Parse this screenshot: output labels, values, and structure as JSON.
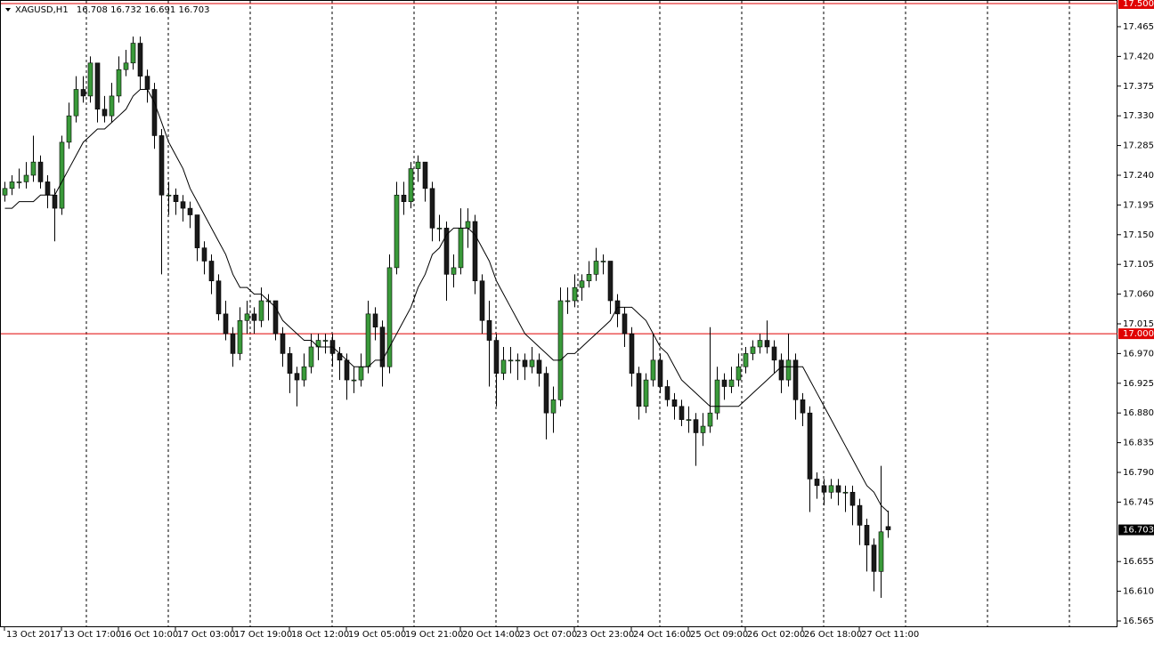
{
  "chart_data": {
    "type": "candlestick",
    "symbol": "XAGUSD,H1",
    "up_color": "#3a9a3a",
    "down_color": "#1a1a1a",
    "ma_color": "#000000",
    "ylim": [
      16.565,
      17.5
    ],
    "yticks": [
      17.465,
      {
        "value": 17.42,
        "label": "17.420"
      },
      17.375,
      {
        "value": 17.33,
        "label": "17.330"
      },
      17.285,
      {
        "value": 17.24,
        "label": "17.240"
      },
      17.195,
      {
        "value": 17.15,
        "label": "17.150"
      },
      17.105,
      {
        "value": 17.06,
        "label": "17.060"
      },
      17.015,
      {
        "value": 16.97,
        "label": "16.970"
      },
      16.925,
      {
        "value": 16.88,
        "label": "16.880"
      },
      16.835,
      {
        "value": 16.79,
        "label": "16.790"
      },
      16.745,
      16.655,
      {
        "value": 16.61,
        "label": "16.610"
      },
      16.565
    ],
    "hlines": [
      {
        "value": 17.5,
        "label": "17.500",
        "color": "#e00000"
      },
      {
        "value": 17.0,
        "label": "17.000",
        "color": "#e00000"
      }
    ],
    "categories": [
      "13 Oct 2017",
      null,
      null,
      null,
      null,
      null,
      null,
      null,
      "13 Oct 17:00",
      null,
      null,
      null,
      null,
      null,
      null,
      null,
      "16 Oct 10:00",
      null,
      null,
      null,
      null,
      null,
      null,
      null,
      "17 Oct 03:00",
      null,
      null,
      null,
      null,
      null,
      null,
      null,
      "17 Oct 19:00",
      null,
      null,
      null,
      null,
      null,
      null,
      null,
      "18 Oct 12:00",
      null,
      null,
      null,
      null,
      null,
      null,
      null,
      "19 Oct 05:00",
      null,
      null,
      null,
      null,
      null,
      null,
      null,
      "19 Oct 21:00",
      null,
      null,
      null,
      null,
      null,
      null,
      null,
      "20 Oct 14:00",
      null,
      null,
      null,
      null,
      null,
      null,
      null,
      "23 Oct 07:00",
      null,
      null,
      null,
      null,
      null,
      null,
      null,
      "23 Oct 23:00",
      null,
      null,
      null,
      null,
      null,
      null,
      null,
      "24 Oct 16:00",
      null,
      null,
      null,
      null,
      null,
      null,
      null,
      "25 Oct 09:00",
      null,
      null,
      null,
      null,
      null,
      null,
      null,
      "26 Oct 02:00",
      null,
      null,
      null,
      null,
      null,
      null,
      null,
      "26 Oct 18:00",
      null,
      null,
      null,
      null,
      null,
      null,
      null,
      "27 Oct 11:00",
      null,
      null,
      null,
      null
    ],
    "candles": [
      [
        17.21,
        17.23,
        17.2,
        17.22
      ],
      [
        17.22,
        17.24,
        17.21,
        17.23
      ],
      [
        17.23,
        17.25,
        17.22,
        17.23
      ],
      [
        17.23,
        17.26,
        17.22,
        17.24
      ],
      [
        17.24,
        17.3,
        17.23,
        17.26
      ],
      [
        17.26,
        17.27,
        17.22,
        17.23
      ],
      [
        17.23,
        17.24,
        17.19,
        17.21
      ],
      [
        17.21,
        17.22,
        17.14,
        17.19
      ],
      [
        17.19,
        17.3,
        17.18,
        17.29
      ],
      [
        17.29,
        17.35,
        17.28,
        17.33
      ],
      [
        17.33,
        17.39,
        17.32,
        17.37
      ],
      [
        17.37,
        17.39,
        17.35,
        17.36
      ],
      [
        17.36,
        17.42,
        17.35,
        17.41
      ],
      [
        17.41,
        17.41,
        17.32,
        17.34
      ],
      [
        17.34,
        17.36,
        17.32,
        17.33
      ],
      [
        17.33,
        17.38,
        17.32,
        17.36
      ],
      [
        17.36,
        17.42,
        17.35,
        17.4
      ],
      [
        17.4,
        17.43,
        17.39,
        17.41
      ],
      [
        17.41,
        17.45,
        17.4,
        17.44
      ],
      [
        17.44,
        17.45,
        17.37,
        17.39
      ],
      [
        17.39,
        17.4,
        17.35,
        17.37
      ],
      [
        17.37,
        17.38,
        17.28,
        17.3
      ],
      [
        17.3,
        17.31,
        17.09,
        17.21
      ],
      [
        17.21,
        17.23,
        17.18,
        17.21
      ],
      [
        17.21,
        17.22,
        17.18,
        17.2
      ],
      [
        17.2,
        17.21,
        17.17,
        17.19
      ],
      [
        17.19,
        17.2,
        17.16,
        17.18
      ],
      [
        17.18,
        17.18,
        17.11,
        17.13
      ],
      [
        17.13,
        17.14,
        17.09,
        17.11
      ],
      [
        17.11,
        17.12,
        17.06,
        17.08
      ],
      [
        17.08,
        17.09,
        17.02,
        17.03
      ],
      [
        17.03,
        17.05,
        16.99,
        17.0
      ],
      [
        17.0,
        17.01,
        16.95,
        16.97
      ],
      [
        16.97,
        17.04,
        16.96,
        17.02
      ],
      [
        17.02,
        17.05,
        17.0,
        17.03
      ],
      [
        17.03,
        17.04,
        17.0,
        17.02
      ],
      [
        17.02,
        17.07,
        17.01,
        17.05
      ],
      [
        17.05,
        17.06,
        17.02,
        17.05
      ],
      [
        17.05,
        17.05,
        16.99,
        17.0
      ],
      [
        17.0,
        17.01,
        16.95,
        16.97
      ],
      [
        16.97,
        16.98,
        16.91,
        16.94
      ],
      [
        16.94,
        16.95,
        16.89,
        16.93
      ],
      [
        16.93,
        16.97,
        16.92,
        16.95
      ],
      [
        16.95,
        17.0,
        16.94,
        16.98
      ],
      [
        16.98,
        17.0,
        16.96,
        16.99
      ],
      [
        16.99,
        17.0,
        16.97,
        16.99
      ],
      [
        16.99,
        17.0,
        16.95,
        16.97
      ],
      [
        16.97,
        16.98,
        16.93,
        16.96
      ],
      [
        16.96,
        16.97,
        16.9,
        16.93
      ],
      [
        16.93,
        16.95,
        16.91,
        16.93
      ],
      [
        16.93,
        16.97,
        16.92,
        16.95
      ],
      [
        16.95,
        17.05,
        16.94,
        17.03
      ],
      [
        17.03,
        17.04,
        16.99,
        17.01
      ],
      [
        17.01,
        17.02,
        16.92,
        16.95
      ],
      [
        16.95,
        17.12,
        16.94,
        17.1
      ],
      [
        17.1,
        17.23,
        17.09,
        17.21
      ],
      [
        17.21,
        17.23,
        17.18,
        17.2
      ],
      [
        17.2,
        17.26,
        17.19,
        17.25
      ],
      [
        17.25,
        17.27,
        17.23,
        17.26
      ],
      [
        17.26,
        17.26,
        17.2,
        17.22
      ],
      [
        17.22,
        17.23,
        17.14,
        17.16
      ],
      [
        17.16,
        17.18,
        17.14,
        17.16
      ],
      [
        17.16,
        17.17,
        17.05,
        17.09
      ],
      [
        17.09,
        17.12,
        17.07,
        17.1
      ],
      [
        17.1,
        17.19,
        17.09,
        17.16
      ],
      [
        17.16,
        17.19,
        17.13,
        17.17
      ],
      [
        17.17,
        17.18,
        17.06,
        17.08
      ],
      [
        17.08,
        17.09,
        17.0,
        17.02
      ],
      [
        17.02,
        17.05,
        16.92,
        16.99
      ],
      [
        16.99,
        17.0,
        16.89,
        16.94
      ],
      [
        16.94,
        16.98,
        16.93,
        16.96
      ],
      [
        16.96,
        16.98,
        16.94,
        16.96
      ],
      [
        16.96,
        16.97,
        16.93,
        16.96
      ],
      [
        16.96,
        16.97,
        16.93,
        16.95
      ],
      [
        16.95,
        16.98,
        16.94,
        16.96
      ],
      [
        16.96,
        16.97,
        16.92,
        16.94
      ],
      [
        16.94,
        16.95,
        16.84,
        16.88
      ],
      [
        16.88,
        16.92,
        16.85,
        16.9
      ],
      [
        16.9,
        17.07,
        16.89,
        17.05
      ],
      [
        17.05,
        17.07,
        17.03,
        17.05
      ],
      [
        17.05,
        17.09,
        17.04,
        17.07
      ],
      [
        17.07,
        17.09,
        17.05,
        17.08
      ],
      [
        17.08,
        17.11,
        17.07,
        17.09
      ],
      [
        17.09,
        17.13,
        17.08,
        17.11
      ],
      [
        17.11,
        17.12,
        17.09,
        17.11
      ],
      [
        17.11,
        17.11,
        17.03,
        17.05
      ],
      [
        17.05,
        17.06,
        17.01,
        17.03
      ],
      [
        17.03,
        17.04,
        16.98,
        17.0
      ],
      [
        17.0,
        17.01,
        16.92,
        16.94
      ],
      [
        16.94,
        16.95,
        16.87,
        16.89
      ],
      [
        16.89,
        16.94,
        16.88,
        16.93
      ],
      [
        16.93,
        17.0,
        16.92,
        16.96
      ],
      [
        16.96,
        16.97,
        16.91,
        16.92
      ],
      [
        16.92,
        16.93,
        16.89,
        16.9
      ],
      [
        16.9,
        16.91,
        16.87,
        16.89
      ],
      [
        16.89,
        16.9,
        16.86,
        16.87
      ],
      [
        16.87,
        16.89,
        16.85,
        16.87
      ],
      [
        16.87,
        16.88,
        16.8,
        16.85
      ],
      [
        16.85,
        16.88,
        16.83,
        16.86
      ],
      [
        16.86,
        17.01,
        16.85,
        16.88
      ],
      [
        16.88,
        16.95,
        16.87,
        16.93
      ],
      [
        16.93,
        16.94,
        16.9,
        16.92
      ],
      [
        16.92,
        16.95,
        16.91,
        16.93
      ],
      [
        16.93,
        16.97,
        16.92,
        16.95
      ],
      [
        16.95,
        16.98,
        16.94,
        16.97
      ],
      [
        16.97,
        16.99,
        16.96,
        16.98
      ],
      [
        16.98,
        17.0,
        16.97,
        16.99
      ],
      [
        16.99,
        17.02,
        16.97,
        16.98
      ],
      [
        16.98,
        16.99,
        16.94,
        16.96
      ],
      [
        16.96,
        16.97,
        16.91,
        16.93
      ],
      [
        16.93,
        17.0,
        16.92,
        16.96
      ],
      [
        16.96,
        16.97,
        16.87,
        16.9
      ],
      [
        16.9,
        16.91,
        16.86,
        16.88
      ],
      [
        16.88,
        16.89,
        16.73,
        16.78
      ],
      [
        16.78,
        16.79,
        16.75,
        16.77
      ],
      [
        16.77,
        16.78,
        16.74,
        16.76
      ],
      [
        16.76,
        16.78,
        16.75,
        16.77
      ],
      [
        16.77,
        16.78,
        16.74,
        16.76
      ],
      [
        16.76,
        16.77,
        16.73,
        16.76
      ],
      [
        16.76,
        16.77,
        16.71,
        16.74
      ],
      [
        16.74,
        16.75,
        16.68,
        16.71
      ],
      [
        16.71,
        16.72,
        16.64,
        16.68
      ],
      [
        16.68,
        16.69,
        16.61,
        16.64
      ],
      [
        16.64,
        16.8,
        16.6,
        16.7
      ],
      [
        16.708,
        16.732,
        16.691,
        16.703
      ]
    ],
    "ma": [
      17.19,
      17.19,
      17.2,
      17.2,
      17.2,
      17.21,
      17.21,
      17.21,
      17.23,
      17.25,
      17.27,
      17.29,
      17.3,
      17.31,
      17.31,
      17.32,
      17.33,
      17.34,
      17.36,
      17.37,
      17.37,
      17.35,
      17.32,
      17.29,
      17.27,
      17.25,
      17.22,
      17.2,
      17.18,
      17.16,
      17.14,
      17.12,
      17.09,
      17.07,
      17.07,
      17.06,
      17.06,
      17.05,
      17.04,
      17.02,
      17.01,
      17.0,
      16.99,
      16.99,
      16.98,
      16.98,
      16.98,
      16.97,
      16.96,
      16.95,
      16.95,
      16.95,
      16.96,
      16.96,
      16.98,
      17.0,
      17.02,
      17.04,
      17.07,
      17.09,
      17.12,
      17.13,
      17.15,
      17.16,
      17.16,
      17.16,
      17.15,
      17.13,
      17.11,
      17.08,
      17.06,
      17.04,
      17.02,
      17.0,
      16.99,
      16.98,
      16.97,
      16.96,
      16.96,
      16.97,
      16.97,
      16.98,
      16.99,
      17.0,
      17.01,
      17.02,
      17.04,
      17.04,
      17.04,
      17.03,
      17.02,
      17.0,
      16.98,
      16.97,
      16.95,
      16.93,
      16.92,
      16.91,
      16.9,
      16.89,
      16.89,
      16.89,
      16.89,
      16.89,
      16.9,
      16.91,
      16.92,
      16.93,
      16.94,
      16.95,
      16.95,
      16.95,
      16.95,
      16.93,
      16.91,
      16.89,
      16.87,
      16.85,
      16.83,
      16.81,
      16.79,
      16.77,
      16.76,
      16.74,
      16.73
    ]
  }
}
